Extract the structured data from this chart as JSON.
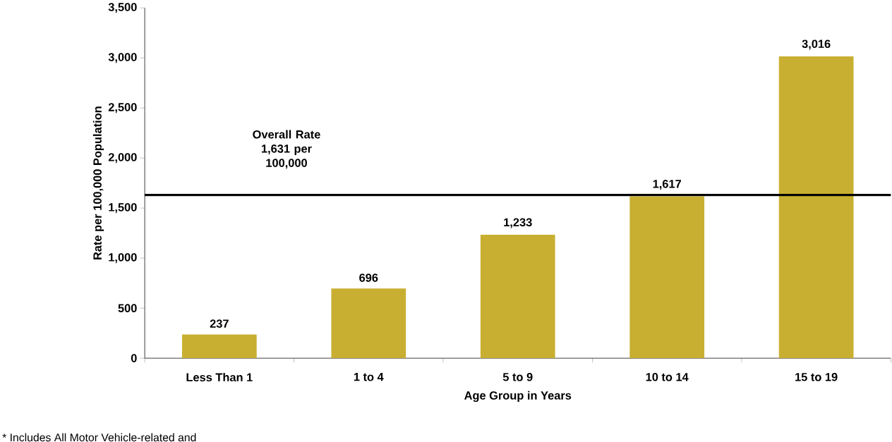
{
  "chart_data": {
    "type": "bar",
    "xlabel": "Age Group in Years",
    "ylabel": "Rate per 100,000 Population",
    "categories": [
      "Less Than 1",
      "1 to 4",
      "5 to 9",
      "10 to 14",
      "15 to 19"
    ],
    "values": [
      237,
      696,
      1233,
      1617,
      3016
    ],
    "value_labels": [
      "237",
      "696",
      "1,233",
      "1,617",
      "3,016"
    ],
    "color": "#c8af31",
    "ylim": [
      0,
      3500
    ],
    "yticks": [
      0,
      500,
      {
        "value": 1000,
        "label": "1,000"
      },
      {
        "value": 1500,
        "label": "1,500"
      },
      {
        "value": 2000,
        "label": "2,000"
      },
      {
        "value": 2500,
        "label": "2,500"
      },
      {
        "value": 3000,
        "label": "3,000"
      },
      {
        "value": 3500,
        "label": "3,500"
      }
    ],
    "ref_lines": [
      {
        "axis": "y",
        "value": 1631,
        "label": "Overall Rate 1,631 per 100,000",
        "color": "#000000"
      }
    ],
    "annotations": [
      "* Includes All Motor Vehicle-related and"
    ],
    "grid": false
  }
}
